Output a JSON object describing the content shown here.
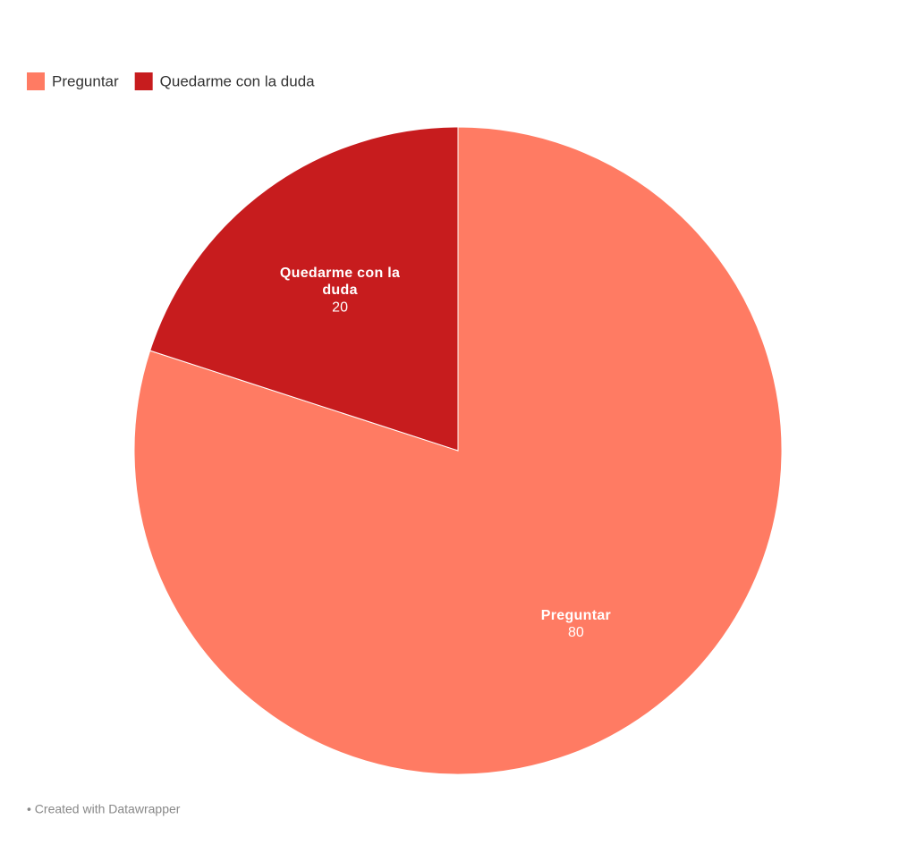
{
  "chart_data": {
    "type": "pie",
    "categories": [
      "Preguntar",
      "Quedarme con la duda"
    ],
    "values": [
      80,
      20
    ],
    "colors": [
      "#ff7b63",
      "#c71c1e"
    ],
    "legend": "top-left",
    "footer": "• Created with Datawrapper"
  }
}
